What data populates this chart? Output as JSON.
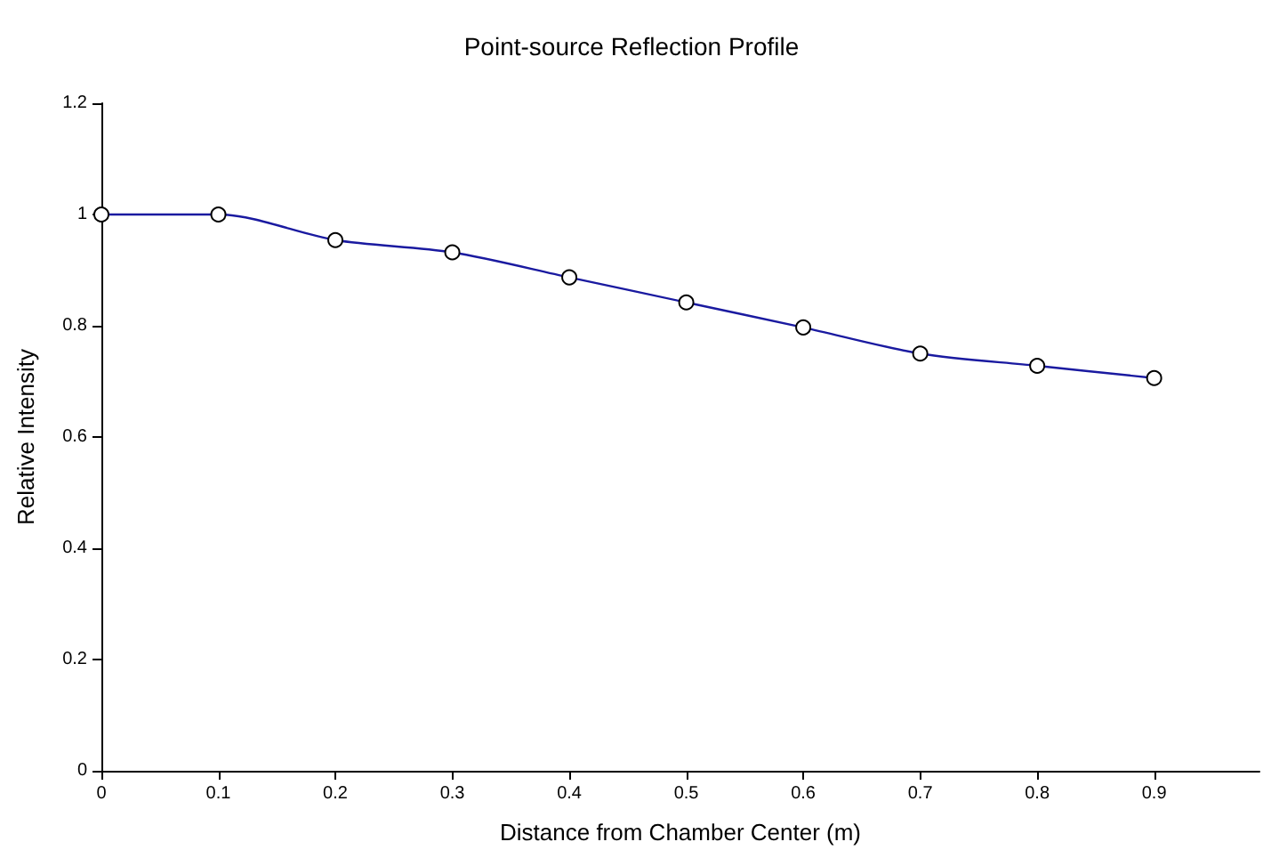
{
  "chart_data": {
    "type": "line",
    "title": "Point-source Reflection Profile",
    "xlabel": "Distance from Chamber Center (m)",
    "ylabel": "Relative Intensity",
    "x": [
      0,
      0.1,
      0.2,
      0.3,
      0.4,
      0.5,
      0.6,
      0.7,
      0.8,
      0.9
    ],
    "series": [
      {
        "color": "#1a1aa0",
        "values": [
          1,
          1,
          0.954,
          0.932,
          0.887,
          0.842,
          0.797,
          0.75,
          0.728,
          0.706
        ]
      }
    ],
    "xlim": [
      0,
      0.99
    ],
    "xticks": [
      0,
      0.1,
      0.2,
      0.3,
      0.4,
      0.5,
      0.6,
      0.7,
      0.8,
      0.9
    ],
    "ylim": [
      0,
      1.2
    ],
    "yticks": [
      0,
      0.2,
      0.4,
      0.6,
      0.8,
      1,
      1.2
    ],
    "grid": false,
    "marker": "circle",
    "line_style": "solid"
  }
}
